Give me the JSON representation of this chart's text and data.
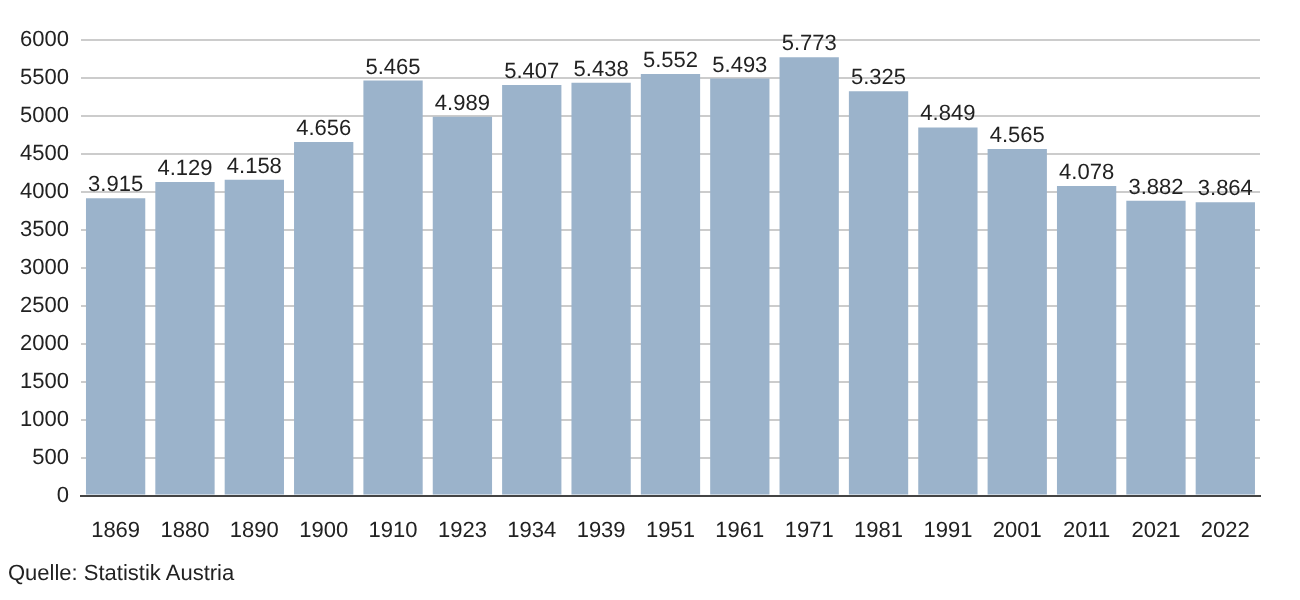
{
  "chart_data": {
    "type": "bar",
    "categories": [
      "1869",
      "1880",
      "1890",
      "1900",
      "1910",
      "1923",
      "1934",
      "1939",
      "1951",
      "1961",
      "1971",
      "1981",
      "1991",
      "2001",
      "2011",
      "2021",
      "2022"
    ],
    "values": [
      3915,
      4129,
      4158,
      4656,
      5465,
      4989,
      5407,
      5438,
      5552,
      5493,
      5773,
      5325,
      4849,
      4565,
      4078,
      3882,
      3864
    ],
    "value_labels": [
      "3.915",
      "4.129",
      "4.158",
      "4.656",
      "5.465",
      "4.989",
      "5.407",
      "5.438",
      "5.552",
      "5.493",
      "5.773",
      "5.325",
      "4.849",
      "4.565",
      "4.078",
      "3.882",
      "3.864"
    ],
    "color": "#9bb3cb",
    "ylim": [
      0,
      6000
    ],
    "yticks": [
      0,
      500,
      1000,
      1500,
      2000,
      2500,
      3000,
      3500,
      4000,
      4500,
      5000,
      5500,
      6000
    ],
    "grid": "y",
    "annotations": [
      "Quelle: Statistik Austria"
    ]
  }
}
